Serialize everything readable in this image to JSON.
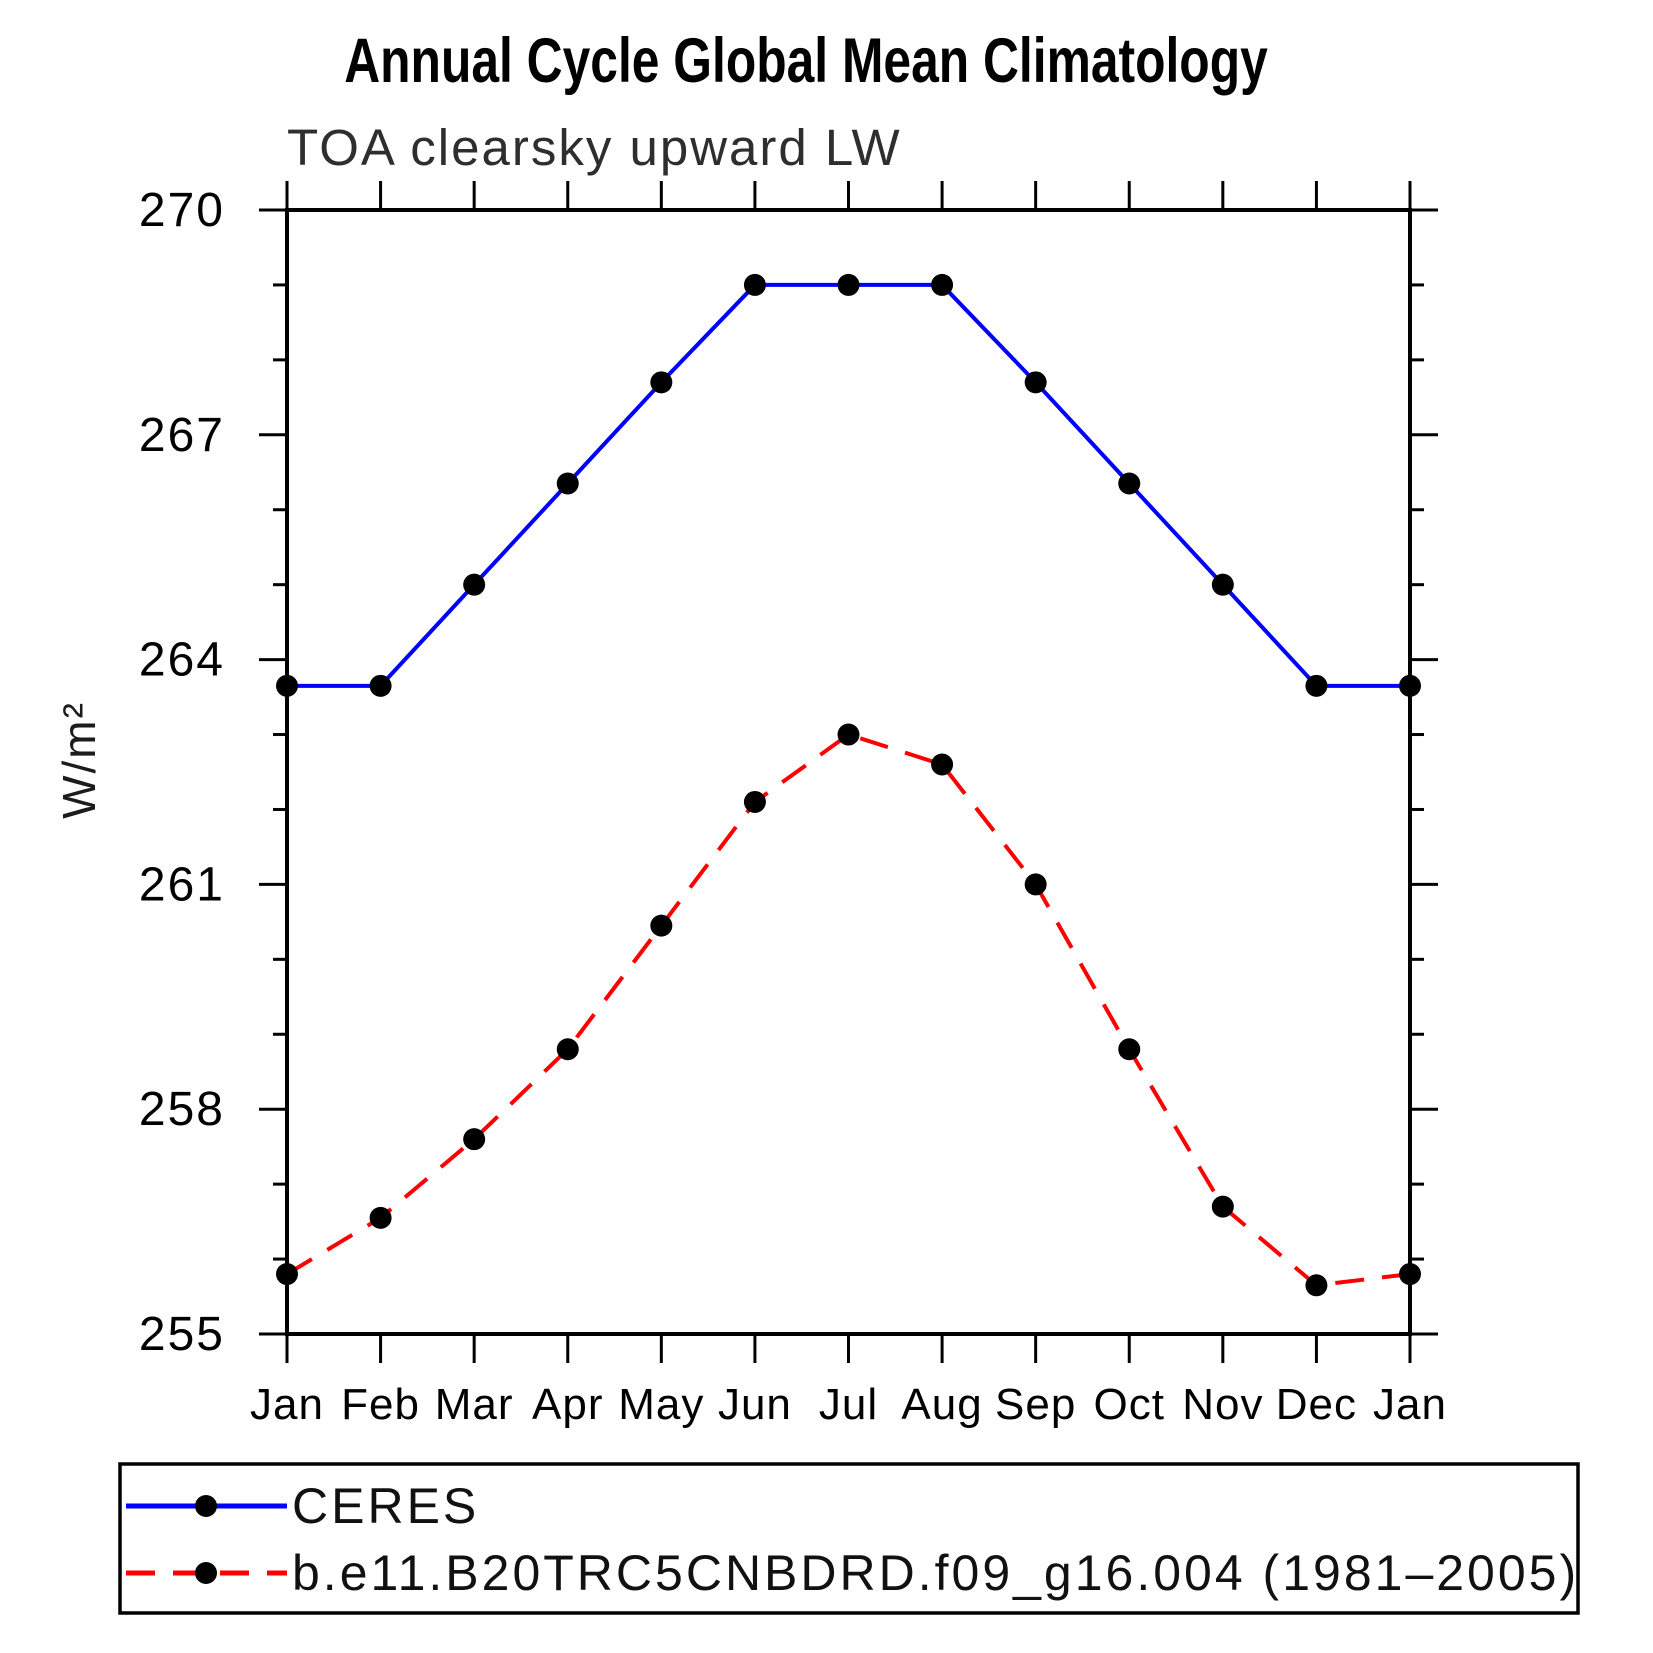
{
  "title": "Annual Cycle Global Mean Climatology",
  "subtitle": "TOA clearsky upward LW",
  "chart_data": {
    "type": "line",
    "categories": [
      "Jan",
      "Feb",
      "Mar",
      "Apr",
      "May",
      "Jun",
      "Jul",
      "Aug",
      "Sep",
      "Oct",
      "Nov",
      "Dec",
      "Jan"
    ],
    "ylabel": "W/m²",
    "ylim": [
      255,
      270
    ],
    "yticks_major": [
      255,
      258,
      261,
      264,
      267,
      270
    ],
    "ytick_minor_step": 1,
    "grid": false,
    "legend_position": "bottom",
    "axis_color": "#000000",
    "marker_color": "#000000",
    "series": [
      {
        "name": "CERES",
        "color": "#0000ff",
        "style": "solid",
        "marker": "circle",
        "values": [
          263.65,
          263.65,
          265.0,
          266.35,
          267.7,
          269.0,
          269.0,
          269.0,
          267.7,
          266.35,
          265.0,
          263.65,
          263.65
        ]
      },
      {
        "name": "b.e11.B20TRC5CNBDRD.f09_g16.004 (1981–2005)",
        "color": "#ff0000",
        "style": "dashed",
        "marker": "circle",
        "values": [
          255.8,
          256.55,
          257.6,
          258.8,
          260.45,
          262.1,
          263.0,
          262.6,
          261.0,
          258.8,
          256.7,
          255.65,
          255.8
        ]
      }
    ]
  }
}
